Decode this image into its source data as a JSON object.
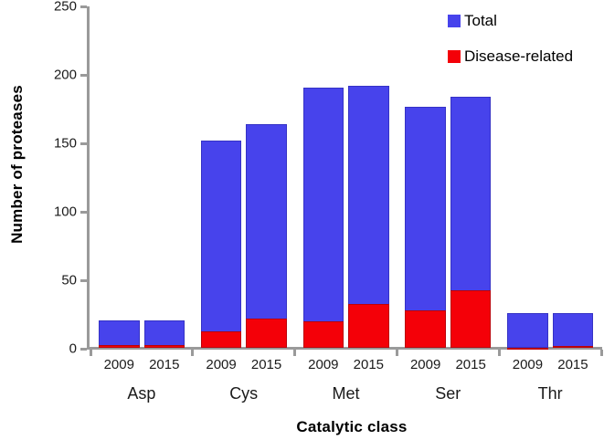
{
  "figure": {
    "y_axis_title": "Number of proteases",
    "x_axis_title": "Catalytic class"
  },
  "legend": {
    "position": "top-right",
    "items": [
      {
        "label": "Total",
        "color": "#4743ec"
      },
      {
        "label": "Disease-related",
        "color": "#f40008"
      }
    ]
  },
  "chart_data": {
    "type": "bar",
    "title": "",
    "xlabel": "Catalytic class",
    "ylabel": "Number of proteases",
    "categories": [
      "Asp",
      "Cys",
      "Met",
      "Ser",
      "Thr"
    ],
    "years": [
      "2009",
      "2015"
    ],
    "series": [
      {
        "name": "Total",
        "color": "#4743ec",
        "values_2009": [
          21,
          152,
          191,
          177,
          26
        ],
        "values_2015": [
          21,
          164,
          192,
          184,
          26
        ]
      },
      {
        "name": "Disease-related",
        "color": "#f40008",
        "values_2009": [
          3,
          13,
          20,
          28,
          1
        ],
        "values_2015": [
          3,
          22,
          33,
          43,
          2
        ]
      }
    ],
    "bar_style": "disease-related subset drawn in front of total (overlaid, not additive)",
    "ylim": [
      0,
      250
    ],
    "yticks": [
      0,
      50,
      100,
      150,
      200,
      250
    ],
    "grid": false,
    "legend_position": "top-right",
    "axis_color": "#9a9a9a"
  }
}
